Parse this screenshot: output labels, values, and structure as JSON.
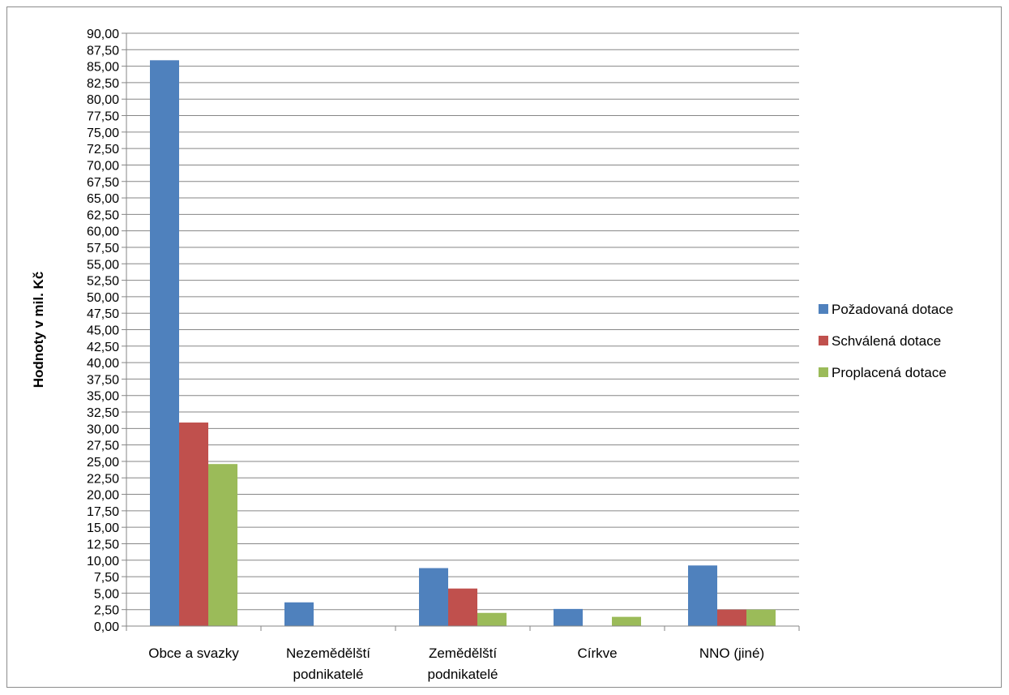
{
  "chart_data": {
    "type": "bar",
    "ylabel": "Hodnoty v mil. Kč",
    "ylim": [
      0,
      90
    ],
    "ytick_step": 2.5,
    "ytick_labels": [
      "0,00",
      "2,50",
      "5,00",
      "7,50",
      "10,00",
      "12,50",
      "15,00",
      "17,50",
      "20,00",
      "22,50",
      "25,00",
      "27,50",
      "30,00",
      "32,50",
      "35,00",
      "37,50",
      "40,00",
      "42,50",
      "45,00",
      "47,50",
      "50,00",
      "52,50",
      "55,00",
      "57,50",
      "60,00",
      "62,50",
      "65,00",
      "67,50",
      "70,00",
      "72,50",
      "75,00",
      "77,50",
      "80,00",
      "82,50",
      "85,00",
      "87,50",
      "90,00"
    ],
    "grid": true,
    "legend_position": "right",
    "categories": [
      [
        "Obce a svazky"
      ],
      [
        "Nezemědělští",
        "podnikatelé"
      ],
      [
        "Zemědělští",
        "podnikatelé"
      ],
      [
        "Církve"
      ],
      [
        "NNO (jiné)"
      ]
    ],
    "series": [
      {
        "name": "Požadovaná dotace",
        "color": "#4F81BD",
        "values": [
          85.9,
          3.6,
          8.8,
          2.6,
          9.2
        ]
      },
      {
        "name": "Schválená dotace",
        "color": "#C0504D",
        "values": [
          30.9,
          0,
          5.7,
          0,
          2.5
        ]
      },
      {
        "name": "Proplacená dotace",
        "color": "#9BBB59",
        "values": [
          24.6,
          0,
          2.0,
          1.4,
          2.5
        ]
      }
    ]
  }
}
